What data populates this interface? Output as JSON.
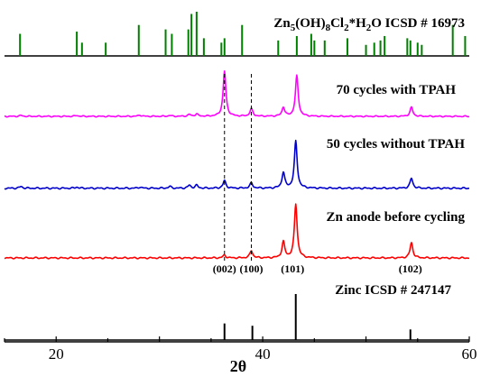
{
  "chart_data": {
    "type": "line",
    "xlabel": "2θ",
    "xlim": [
      15,
      60
    ],
    "x_ticks": [
      {
        "value": 20,
        "label": "20"
      },
      {
        "value": 40,
        "label": "40"
      },
      {
        "value": 60,
        "label": "60"
      }
    ],
    "stick_refs": [
      {
        "name": "Zn5(OH)8Cl2*H2O ICSD # 16973",
        "label_parts": [
          {
            "text": "Zn",
            "sub": false
          },
          {
            "text": "5",
            "sub": true
          },
          {
            "text": "(OH)",
            "sub": false
          },
          {
            "text": "8",
            "sub": true
          },
          {
            "text": "Cl",
            "sub": false
          },
          {
            "text": "2",
            "sub": true
          },
          {
            "text": "*H",
            "sub": false
          },
          {
            "text": "2",
            "sub": true
          },
          {
            "text": "O ICSD # 16973",
            "sub": false
          }
        ],
        "color": "#008000",
        "peaks": [
          {
            "x": 16.5,
            "h": 0.5
          },
          {
            "x": 22.0,
            "h": 0.55
          },
          {
            "x": 22.5,
            "h": 0.3
          },
          {
            "x": 24.8,
            "h": 0.3
          },
          {
            "x": 28.0,
            "h": 0.7
          },
          {
            "x": 30.6,
            "h": 0.6
          },
          {
            "x": 31.2,
            "h": 0.5
          },
          {
            "x": 32.8,
            "h": 0.6
          },
          {
            "x": 33.1,
            "h": 0.95
          },
          {
            "x": 33.6,
            "h": 1.0
          },
          {
            "x": 34.3,
            "h": 0.4
          },
          {
            "x": 36.0,
            "h": 0.3
          },
          {
            "x": 36.3,
            "h": 0.4
          },
          {
            "x": 38.0,
            "h": 0.7
          },
          {
            "x": 41.5,
            "h": 0.35
          },
          {
            "x": 43.3,
            "h": 0.45
          },
          {
            "x": 44.7,
            "h": 0.5
          },
          {
            "x": 45.0,
            "h": 0.35
          },
          {
            "x": 46.0,
            "h": 0.35
          },
          {
            "x": 48.2,
            "h": 0.4
          },
          {
            "x": 50.0,
            "h": 0.25
          },
          {
            "x": 50.8,
            "h": 0.3
          },
          {
            "x": 51.4,
            "h": 0.35
          },
          {
            "x": 51.8,
            "h": 0.45
          },
          {
            "x": 54.0,
            "h": 0.4
          },
          {
            "x": 54.3,
            "h": 0.35
          },
          {
            "x": 55.0,
            "h": 0.3
          },
          {
            "x": 55.4,
            "h": 0.25
          },
          {
            "x": 58.4,
            "h": 0.7
          },
          {
            "x": 59.6,
            "h": 0.45
          }
        ]
      },
      {
        "name": "Zinc ICSD # 247147",
        "label_parts": [
          {
            "text": "Zinc ICSD # 247147",
            "sub": false
          }
        ],
        "color": "#000000",
        "peaks": [
          {
            "x": 36.3,
            "h": 0.36
          },
          {
            "x": 39.0,
            "h": 0.31
          },
          {
            "x": 43.2,
            "h": 1.0
          },
          {
            "x": 54.3,
            "h": 0.23
          }
        ]
      }
    ],
    "series": [
      {
        "name": "70 cycles with TPAH",
        "color": "#ff00ff",
        "baseline": 0.02,
        "peaks": [
          {
            "x": 16.6,
            "h": 0.02
          },
          {
            "x": 22.0,
            "h": 0.02
          },
          {
            "x": 28.1,
            "h": 0.03
          },
          {
            "x": 31.0,
            "h": 0.02
          },
          {
            "x": 32.9,
            "h": 0.04
          },
          {
            "x": 33.6,
            "h": 0.05
          },
          {
            "x": 36.3,
            "h": 1.0
          },
          {
            "x": 38.9,
            "h": 0.17
          },
          {
            "x": 42.0,
            "h": 0.2
          },
          {
            "x": 43.3,
            "h": 0.9
          },
          {
            "x": 54.4,
            "h": 0.2
          }
        ]
      },
      {
        "name": "50 cycles without TPAH",
        "color": "#0000cc",
        "baseline": 0.02,
        "peaks": [
          {
            "x": 16.6,
            "h": 0.03
          },
          {
            "x": 22.0,
            "h": 0.02
          },
          {
            "x": 28.1,
            "h": 0.02
          },
          {
            "x": 31.0,
            "h": 0.03
          },
          {
            "x": 32.9,
            "h": 0.05
          },
          {
            "x": 33.6,
            "h": 0.05
          },
          {
            "x": 36.3,
            "h": 0.13
          },
          {
            "x": 38.9,
            "h": 0.09
          },
          {
            "x": 42.0,
            "h": 0.27
          },
          {
            "x": 43.2,
            "h": 0.8
          },
          {
            "x": 54.4,
            "h": 0.17
          }
        ]
      },
      {
        "name": "Zn anode before cycling",
        "color": "#ff0000",
        "baseline": 0.0,
        "peaks": [
          {
            "x": 36.3,
            "h": 0.05
          },
          {
            "x": 38.9,
            "h": 0.13
          },
          {
            "x": 42.0,
            "h": 0.28
          },
          {
            "x": 43.2,
            "h": 0.95
          },
          {
            "x": 54.4,
            "h": 0.27
          }
        ]
      }
    ],
    "peak_labels": [
      {
        "x": 36.3,
        "label": "(002)"
      },
      {
        "x": 38.9,
        "label": "(100)"
      },
      {
        "x": 42.9,
        "label": "(101)"
      },
      {
        "x": 54.3,
        "label": "(102)"
      }
    ],
    "dashed_guides": [
      36.3,
      38.9
    ]
  }
}
